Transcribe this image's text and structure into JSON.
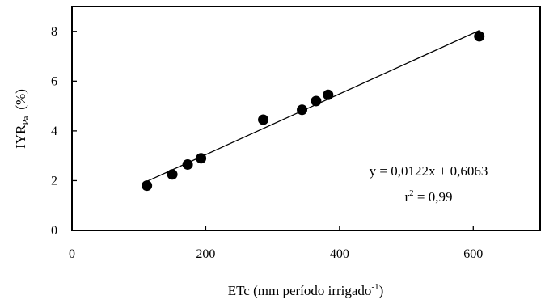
{
  "chart_data": {
    "type": "scatter",
    "title": "",
    "xlabel": {
      "base": "ETc (mm período irrigado",
      "sup": "-1",
      "close": ")"
    },
    "ylabel": {
      "base": "IYR",
      "sub": "Pa",
      "unit": "(%)"
    },
    "xlim": [
      0,
      700
    ],
    "ylim": [
      0,
      9
    ],
    "x_ticks": [
      0,
      200,
      400,
      600
    ],
    "y_ticks": [
      0,
      2,
      4,
      6,
      8
    ],
    "grid": false,
    "series": [
      {
        "points": [
          {
            "x": 112,
            "y": 1.8
          },
          {
            "x": 150,
            "y": 2.25
          },
          {
            "x": 173,
            "y": 2.65
          },
          {
            "x": 193,
            "y": 2.9
          },
          {
            "x": 286,
            "y": 4.45
          },
          {
            "x": 344,
            "y": 4.85
          },
          {
            "x": 365,
            "y": 5.2
          },
          {
            "x": 383,
            "y": 5.45
          },
          {
            "x": 609,
            "y": 7.8
          }
        ],
        "color": "#000000"
      }
    ],
    "trendline": {
      "slope": 0.0122,
      "intercept": 0.6063,
      "x_range": [
        110,
        609
      ]
    },
    "annotations": {
      "equation": "y = 0,0122x + 0,6063",
      "r2_base": "r",
      "r2_sup": "2",
      "r2_value": " = 0,99"
    }
  }
}
